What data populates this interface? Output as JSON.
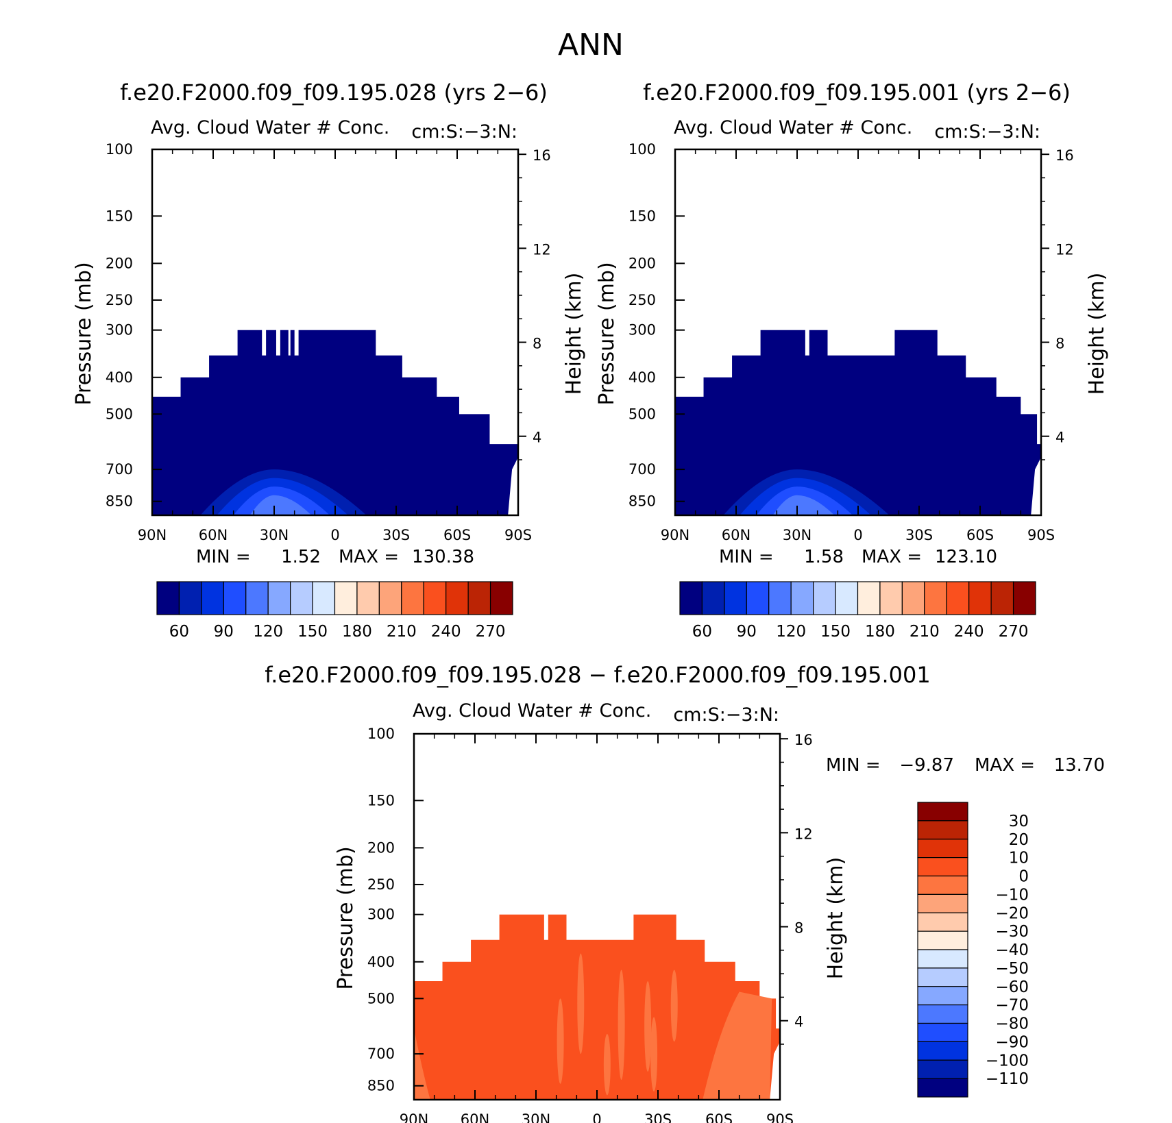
{
  "figure_title": "ANN",
  "chart_data": [
    {
      "type": "heatmap",
      "title": "f.e20.F2000.f09_f09.195.028 (yrs 2−6)",
      "subtitle": "Avg. Cloud Water # Conc.",
      "units": "cm:S:−3:N:",
      "xlabel": "",
      "ylabel": "Pressure (mb)",
      "y2label": "Height (km)",
      "x_ticks": [
        "90N",
        "60N",
        "30N",
        "0",
        "30S",
        "60S",
        "90S"
      ],
      "x_values": [
        90,
        60,
        30,
        0,
        -30,
        -60,
        -90
      ],
      "y_ticks": [
        100,
        150,
        200,
        250,
        300,
        400,
        500,
        700,
        850
      ],
      "y2_ticks": [
        16,
        12,
        8,
        4
      ],
      "ylim": [
        100,
        925
      ],
      "min_label": "MIN =",
      "max_label": "MAX =",
      "min": "1.52",
      "max": "130.38",
      "colorbar": {
        "labels": [
          "60",
          "90",
          "120",
          "150",
          "180",
          "210",
          "240",
          "270"
        ],
        "colors": [
          "#000080",
          "#0020b0",
          "#0033e0",
          "#1f4eff",
          "#4c78ff",
          "#86a8ff",
          "#b6ccff",
          "#d8e9ff",
          "#ffeedd",
          "#ffcbad",
          "#fda47a",
          "#fd7540",
          "#fa501e",
          "#e03308",
          "#bb2405",
          "#880000"
        ]
      },
      "field": {
        "top_pressure_by_lat": [
          [
            90,
            450
          ],
          [
            76,
            400
          ],
          [
            62,
            350
          ],
          [
            48,
            300
          ],
          [
            36,
            350
          ],
          [
            34,
            300
          ],
          [
            29,
            350
          ],
          [
            27,
            300
          ],
          [
            23,
            350
          ],
          [
            22,
            300
          ],
          [
            20,
            350
          ],
          [
            18,
            300
          ],
          [
            -5,
            300
          ],
          [
            -20,
            350
          ],
          [
            -33,
            400
          ],
          [
            -50,
            450
          ],
          [
            -61,
            500
          ],
          [
            -76,
            600
          ],
          [
            -90,
            600
          ]
        ],
        "surface_pressure_by_lat": [
          [
            90,
            925
          ],
          [
            -85,
            925
          ],
          [
            -87,
            700
          ],
          [
            -90,
            650
          ]
        ],
        "dominant_bin": "#000080",
        "low_level_maximum": {
          "center_lat": 30,
          "range": [
            66,
            -15
          ],
          "top_pressure": 700,
          "bins": [
            "#0020b0",
            "#0033e0",
            "#1f4eff",
            "#4c78ff"
          ]
        }
      }
    },
    {
      "type": "heatmap",
      "title": "f.e20.F2000.f09_f09.195.001 (yrs 2−6)",
      "subtitle": "Avg. Cloud Water # Conc.",
      "units": "cm:S:−3:N:",
      "xlabel": "",
      "ylabel": "Pressure (mb)",
      "y2label": "Height (km)",
      "x_ticks": [
        "90N",
        "60N",
        "30N",
        "0",
        "30S",
        "60S",
        "90S"
      ],
      "x_values": [
        90,
        60,
        30,
        0,
        -30,
        -60,
        -90
      ],
      "y_ticks": [
        100,
        150,
        200,
        250,
        300,
        400,
        500,
        700,
        850
      ],
      "y2_ticks": [
        16,
        12,
        8,
        4
      ],
      "ylim": [
        100,
        925
      ],
      "min_label": "MIN =",
      "max_label": "MAX =",
      "min": "1.58",
      "max": "123.10",
      "colorbar": {
        "labels": [
          "60",
          "90",
          "120",
          "150",
          "180",
          "210",
          "240",
          "270"
        ],
        "colors": [
          "#000080",
          "#0020b0",
          "#0033e0",
          "#1f4eff",
          "#4c78ff",
          "#86a8ff",
          "#b6ccff",
          "#d8e9ff",
          "#ffeedd",
          "#ffcbad",
          "#fda47a",
          "#fd7540",
          "#fa501e",
          "#e03308",
          "#bb2405",
          "#880000"
        ]
      },
      "field": {
        "top_pressure_by_lat": [
          [
            90,
            450
          ],
          [
            76,
            400
          ],
          [
            62,
            350
          ],
          [
            48,
            300
          ],
          [
            26,
            350
          ],
          [
            24,
            300
          ],
          [
            15,
            350
          ],
          [
            -18,
            300
          ],
          [
            -39,
            350
          ],
          [
            -53,
            400
          ],
          [
            -68,
            450
          ],
          [
            -80,
            500
          ],
          [
            -88,
            600
          ],
          [
            -90,
            600
          ]
        ],
        "surface_pressure_by_lat": [
          [
            90,
            925
          ],
          [
            -85,
            925
          ],
          [
            -87,
            700
          ],
          [
            -90,
            650
          ]
        ],
        "dominant_bin": "#000080",
        "low_level_maximum": {
          "center_lat": 30,
          "range": [
            66,
            -15
          ],
          "top_pressure": 700,
          "bins": [
            "#0020b0",
            "#0033e0",
            "#1f4eff",
            "#4c78ff"
          ]
        }
      }
    },
    {
      "type": "heatmap",
      "title": "f.e20.F2000.f09_f09.195.028 − f.e20.F2000.f09_f09.195.001",
      "subtitle": "Avg. Cloud Water # Conc.",
      "units": "cm:S:−3:N:",
      "xlabel": "",
      "ylabel": "Pressure (mb)",
      "y2label": "Height (km)",
      "x_ticks": [
        "90N",
        "60N",
        "30N",
        "0",
        "30S",
        "60S",
        "90S"
      ],
      "x_values": [
        90,
        60,
        30,
        0,
        -30,
        -60,
        -90
      ],
      "y_ticks": [
        100,
        150,
        200,
        250,
        300,
        400,
        500,
        700,
        850
      ],
      "y2_ticks": [
        16,
        12,
        8,
        4
      ],
      "ylim": [
        100,
        925
      ],
      "min_label": "MIN =",
      "max_label": "MAX =",
      "min": "−9.87",
      "max": "13.70",
      "colorbar": {
        "labels": [
          "30",
          "20",
          "10",
          "0",
          "−10",
          "−20",
          "−30",
          "−40",
          "−50",
          "−60",
          "−70",
          "−80",
          "−90",
          "−100",
          "−110"
        ],
        "colors": [
          "#880000",
          "#bb2405",
          "#e03308",
          "#fa501e",
          "#fd7540",
          "#fda47a",
          "#ffcbad",
          "#ffeedd",
          "#d8e9ff",
          "#b6ccff",
          "#86a8ff",
          "#4c78ff",
          "#1f4eff",
          "#0033e0",
          "#0020b0",
          "#000080"
        ]
      },
      "field": {
        "top_pressure_by_lat": [
          [
            90,
            450
          ],
          [
            76,
            400
          ],
          [
            62,
            350
          ],
          [
            48,
            300
          ],
          [
            26,
            350
          ],
          [
            24,
            300
          ],
          [
            15,
            350
          ],
          [
            -18,
            300
          ],
          [
            -39,
            350
          ],
          [
            -53,
            400
          ],
          [
            -68,
            450
          ],
          [
            -80,
            500
          ],
          [
            -88,
            600
          ],
          [
            -90,
            600
          ]
        ],
        "surface_pressure_by_lat": [
          [
            90,
            925
          ],
          [
            -85,
            925
          ],
          [
            -87,
            700
          ],
          [
            -90,
            650
          ]
        ],
        "dominant_bin": "#fa501e",
        "secondary_bin": "#fd7540"
      }
    }
  ]
}
